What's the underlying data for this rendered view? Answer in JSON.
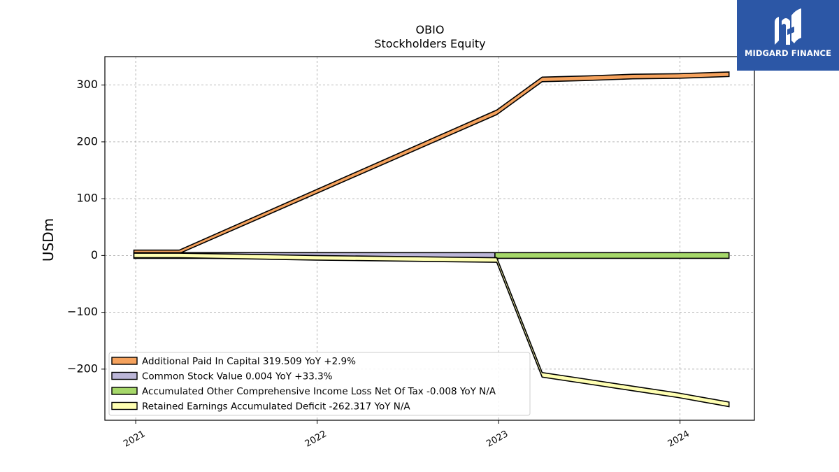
{
  "chart_data": {
    "type": "area",
    "title": "OBIO",
    "subtitle": "Stockholders  Equity",
    "ylabel": "USDm",
    "xlabel": "",
    "ylim": [
      -290,
      350
    ],
    "xlim": [
      2020.83,
      2024.41
    ],
    "yticks": [
      300,
      200,
      100,
      0,
      -100,
      -200
    ],
    "ytick_labels": [
      "300",
      "200",
      "100",
      "0",
      "−100",
      "−200"
    ],
    "xticks": [
      2021,
      2022,
      2023,
      2024
    ],
    "xtick_labels": [
      "2021",
      "2022",
      "2023",
      "2024"
    ],
    "grid": true,
    "legend_position": "lower-left",
    "series": [
      {
        "name": "Additional Paid In Capital  319.509 YoY +2.9%",
        "color": "#f5a25d",
        "upper": [
          [
            2020.99,
            9.5
          ],
          [
            2021.24,
            9.5
          ],
          [
            2022.99,
            256
          ],
          [
            2023.24,
            314
          ],
          [
            2023.49,
            316
          ],
          [
            2023.74,
            319
          ],
          [
            2023.99,
            320
          ],
          [
            2024.27,
            323
          ]
        ],
        "lower": [
          [
            2020.99,
            3.5
          ],
          [
            2021.24,
            3.5
          ],
          [
            2022.99,
            248
          ],
          [
            2023.24,
            306
          ],
          [
            2023.49,
            308
          ],
          [
            2023.74,
            311
          ],
          [
            2023.99,
            312
          ],
          [
            2024.27,
            315
          ]
        ]
      },
      {
        "name": "Common Stock Value  0.004 YoY +33.3%",
        "color": "#bcb6d8",
        "upper": [
          [
            2020.99,
            5
          ],
          [
            2022.98,
            5
          ]
        ],
        "lower": [
          [
            2020.99,
            -5
          ],
          [
            2022.98,
            -5
          ]
        ]
      },
      {
        "name": "Accumulated Other Comprehensive Income Loss Net Of Tax  -0.008 YoY N/A",
        "color": "#a6d86a",
        "upper": [
          [
            2022.98,
            5
          ],
          [
            2024.27,
            5
          ]
        ],
        "lower": [
          [
            2022.98,
            -5
          ],
          [
            2024.27,
            -5
          ]
        ]
      },
      {
        "name": "Retained Earnings Accumulated Deficit  -262.317 YoY N/A",
        "color": "#ffffb2",
        "upper": [
          [
            2020.99,
            4
          ],
          [
            2021.24,
            4
          ],
          [
            2021.99,
            0
          ],
          [
            2022.99,
            -4
          ],
          [
            2023.24,
            -206
          ],
          [
            2023.49,
            -218
          ],
          [
            2023.74,
            -230
          ],
          [
            2023.99,
            -242
          ],
          [
            2024.27,
            -258
          ]
        ],
        "lower": [
          [
            2020.99,
            -4
          ],
          [
            2021.24,
            -4
          ],
          [
            2021.99,
            -8
          ],
          [
            2022.99,
            -12
          ],
          [
            2023.24,
            -214
          ],
          [
            2023.49,
            -226
          ],
          [
            2023.74,
            -238
          ],
          [
            2023.99,
            -250
          ],
          [
            2024.27,
            -266
          ]
        ]
      }
    ]
  },
  "logo": {
    "text": "MIDGARD FINANCE",
    "background": "#2c57a6"
  }
}
